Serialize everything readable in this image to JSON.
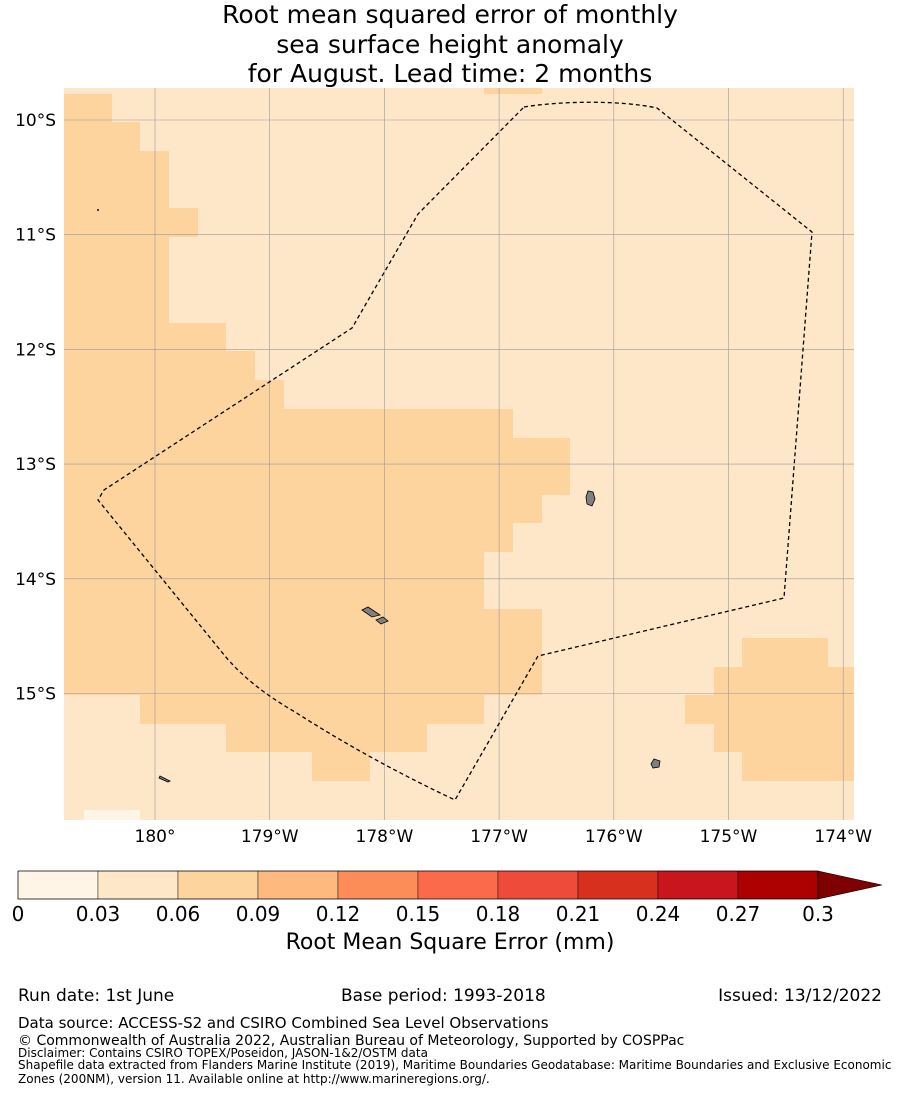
{
  "title": {
    "line1": "Root mean squared error of monthly",
    "line2": "sea surface height anomaly",
    "line3": "for August. Lead time: 2 months"
  },
  "map": {
    "lon_ticks": [
      {
        "value": 180,
        "label": "180°"
      },
      {
        "value": -179,
        "label": "179°W"
      },
      {
        "value": -178,
        "label": "178°W"
      },
      {
        "value": -177,
        "label": "177°W"
      },
      {
        "value": -176,
        "label": "176°W"
      },
      {
        "value": -175,
        "label": "175°W"
      },
      {
        "value": -174,
        "label": "174°W"
      }
    ],
    "lat_ticks": [
      {
        "value": -10,
        "label": "10°S"
      },
      {
        "value": -11,
        "label": "11°S"
      },
      {
        "value": -12,
        "label": "12°S"
      },
      {
        "value": -13,
        "label": "13°S"
      },
      {
        "value": -14,
        "label": "14°S"
      },
      {
        "value": -15,
        "label": "15°S"
      }
    ],
    "extent": {
      "west": 179.2,
      "east": -173.9,
      "north": -9.7,
      "south": -16.1
    },
    "grid": "on",
    "boundary": "dashed EEZ outline",
    "land_color": "#808080"
  },
  "colorbar": {
    "label": "Root Mean Square Error (mm)",
    "ticks": [
      "0",
      "0.03",
      "0.06",
      "0.09",
      "0.12",
      "0.15",
      "0.18",
      "0.21",
      "0.24",
      "0.27",
      "0.3"
    ],
    "colors": [
      "#fff5e6",
      "#fee6c9",
      "#fdd39e",
      "#fdb97e",
      "#fc8d59",
      "#fb6a4a",
      "#ef4b3a",
      "#d7301f",
      "#c8151e",
      "#ad0000"
    ],
    "extend_color": "#7f0000"
  },
  "meta": {
    "run_date": "Run date: 1st June",
    "base_period": "Base period: 1993-2018",
    "issued": "Issued: 13/12/2022"
  },
  "footer": {
    "data_source": "Data source: ACCESS-S2 and CSIRO Combined Sea Level Observations",
    "copyright": "© Commonwealth of Australia 2022, Australian Bureau of Meteorology, Supported by COSPPac",
    "disclaimer": "Disclaimer: Contains CSIRO TOPEX/Poseidon, JASON-1&2/OSTM data",
    "shapefile1": "Shapefile data extracted from Flanders Marine Institute (2019), Maritime Boundaries Geodatabase: Maritime Boundaries and Exclusive Economic",
    "shapefile2": "Zones (200NM), version 11. Available online at http://www.marineregions.org/."
  }
}
